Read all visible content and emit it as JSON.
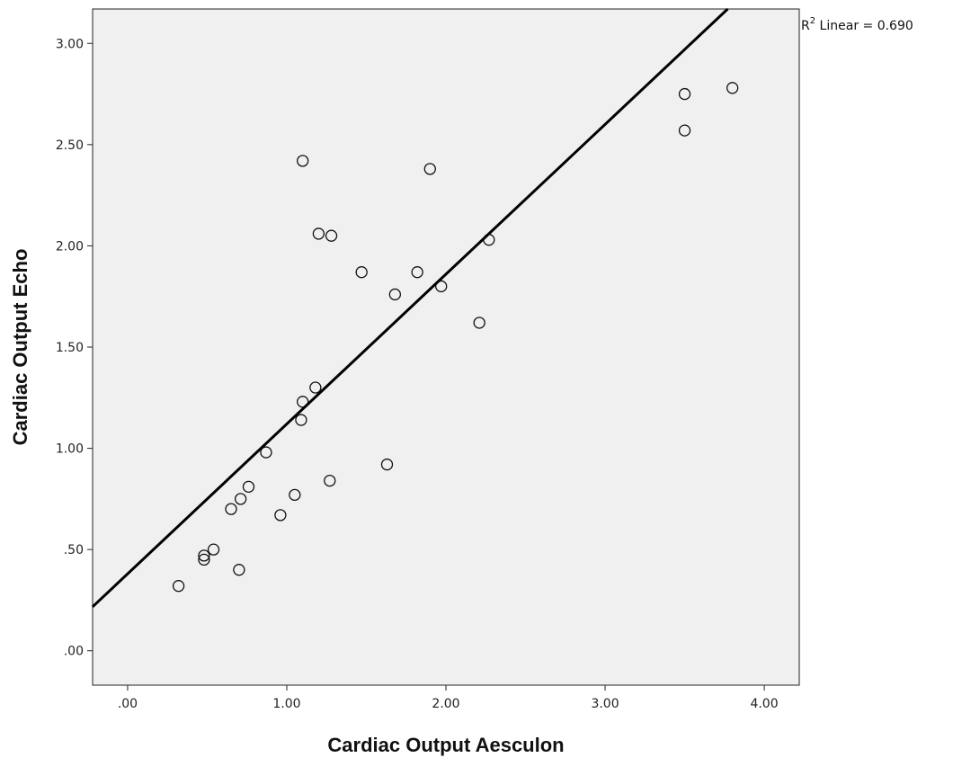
{
  "chart_data": {
    "type": "scatter",
    "xlabel": "Cardiac Output Aesculon",
    "ylabel": "Cardiac Output Echo",
    "xlim": [
      -0.22,
      4.22
    ],
    "ylim": [
      -0.17,
      3.17
    ],
    "x_ticks": [
      0,
      1,
      2,
      3,
      4
    ],
    "x_tick_labels": [
      ".00",
      "1.00",
      "2.00",
      "3.00",
      "4.00"
    ],
    "y_ticks": [
      0,
      0.5,
      1,
      1.5,
      2,
      2.5,
      3
    ],
    "y_tick_labels": [
      ".00",
      ".50",
      "1.00",
      "1.50",
      "2.00",
      "2.50",
      "3.00"
    ],
    "grid": false,
    "plot_background": "#f0f0f0",
    "marker": "open-circle",
    "points": [
      {
        "x": 0.32,
        "y": 0.32
      },
      {
        "x": 0.48,
        "y": 0.45
      },
      {
        "x": 0.48,
        "y": 0.47
      },
      {
        "x": 0.54,
        "y": 0.5
      },
      {
        "x": 0.7,
        "y": 0.4
      },
      {
        "x": 0.65,
        "y": 0.7
      },
      {
        "x": 0.71,
        "y": 0.75
      },
      {
        "x": 0.76,
        "y": 0.81
      },
      {
        "x": 0.87,
        "y": 0.98
      },
      {
        "x": 0.96,
        "y": 0.67
      },
      {
        "x": 1.05,
        "y": 0.77
      },
      {
        "x": 1.09,
        "y": 1.14
      },
      {
        "x": 1.1,
        "y": 1.23
      },
      {
        "x": 1.18,
        "y": 1.3
      },
      {
        "x": 1.1,
        "y": 2.42
      },
      {
        "x": 1.2,
        "y": 2.06
      },
      {
        "x": 1.28,
        "y": 2.05
      },
      {
        "x": 1.27,
        "y": 0.84
      },
      {
        "x": 1.47,
        "y": 1.87
      },
      {
        "x": 1.63,
        "y": 0.92
      },
      {
        "x": 1.68,
        "y": 1.76
      },
      {
        "x": 1.82,
        "y": 1.87
      },
      {
        "x": 1.9,
        "y": 2.38
      },
      {
        "x": 1.97,
        "y": 1.8
      },
      {
        "x": 2.21,
        "y": 1.62
      },
      {
        "x": 2.27,
        "y": 2.03
      },
      {
        "x": 3.5,
        "y": 2.75
      },
      {
        "x": 3.5,
        "y": 2.57
      },
      {
        "x": 3.8,
        "y": 2.78
      }
    ],
    "fit_line": {
      "slope": 0.74,
      "intercept": 0.38
    },
    "annotation": {
      "r2_prefix": "R",
      "r2_sup": "2",
      "r2_text": " Linear = 0.690"
    }
  }
}
